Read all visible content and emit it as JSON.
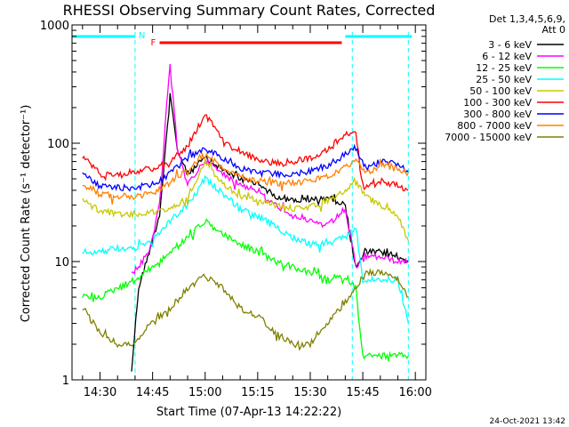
{
  "chart_data": {
    "type": "line",
    "title": "RHESSI Observing Summary Count Rates, Corrected",
    "xlabel": "Start Time (07-Apr-13 14:22:22)",
    "ylabel": "Corrected Count Rate (s⁻¹ detector⁻¹)",
    "y_scale": "log",
    "ylim": [
      1,
      1000
    ],
    "xlim": [
      "14:22",
      "16:03"
    ],
    "x_ticks": [
      "14:30",
      "14:45",
      "15:00",
      "15:15",
      "15:30",
      "15:45",
      "16:00"
    ],
    "y_ticks": [
      "1",
      "10",
      "100",
      "1000"
    ],
    "legend_header": [
      "Det 1,3,4,5,6,9,",
      "Att 0"
    ],
    "footer": "24-Oct-2021 13:42",
    "annotations": {
      "night_label": "N",
      "flare_label": "F",
      "flare_interval": [
        "14:47",
        "15:39"
      ],
      "night_intervals": [
        [
          "14:22",
          "14:40"
        ],
        [
          "15:40",
          "15:59"
        ]
      ],
      "boundary_dashes": [
        "14:40",
        "15:42",
        "15:58"
      ]
    },
    "colors": {
      "night": "#00FFFF",
      "flare": "#FF0000"
    },
    "series": [
      {
        "name": "3 - 6 keV",
        "color": "#000000",
        "x": [
          "14:39",
          "14:41",
          "14:44",
          "14:47",
          "14:50",
          "14:52",
          "14:55",
          "15:00",
          "15:05",
          "15:10",
          "15:15",
          "15:20",
          "15:25",
          "15:30",
          "15:35",
          "15:40",
          "15:43",
          "15:46",
          "15:50",
          "15:55",
          "15:58"
        ],
        "y": [
          1.2,
          6,
          12,
          25,
          250,
          90,
          55,
          75,
          60,
          50,
          45,
          36,
          33,
          33,
          35,
          30,
          9,
          12,
          12,
          11,
          10
        ]
      },
      {
        "name": "6 - 12 keV",
        "color": "#FF00FF",
        "x": [
          "14:39",
          "14:41",
          "14:44",
          "14:47",
          "14:49",
          "14:50",
          "14:52",
          "14:55",
          "15:00",
          "15:05",
          "15:10",
          "15:15",
          "15:20",
          "15:25",
          "15:30",
          "15:35",
          "15:40",
          "15:43",
          "15:46",
          "15:50",
          "15:55",
          "15:58"
        ],
        "y": [
          8,
          9,
          12,
          30,
          200,
          470,
          90,
          45,
          72,
          55,
          45,
          40,
          30,
          25,
          22,
          20,
          28,
          9,
          11,
          11,
          10,
          10
        ]
      },
      {
        "name": "12 - 25 keV",
        "color": "#00FF00",
        "x": [
          "14:25",
          "14:30",
          "14:35",
          "14:40",
          "14:45",
          "14:50",
          "14:55",
          "15:00",
          "15:05",
          "15:10",
          "15:15",
          "15:20",
          "15:25",
          "15:30",
          "15:35",
          "15:40",
          "15:43",
          "15:45",
          "15:50",
          "15:55",
          "15:58"
        ],
        "y": [
          5,
          5,
          6,
          7,
          9,
          12,
          16,
          22,
          17,
          14,
          12,
          10,
          9,
          8,
          7,
          7.5,
          6,
          1.6,
          1.6,
          1.6,
          1.6
        ]
      },
      {
        "name": "25 - 50 keV",
        "color": "#00FFFF",
        "x": [
          "14:25",
          "14:30",
          "14:35",
          "14:40",
          "14:45",
          "14:50",
          "14:55",
          "15:00",
          "15:05",
          "15:10",
          "15:15",
          "15:20",
          "15:25",
          "15:30",
          "15:35",
          "15:40",
          "15:43",
          "15:45",
          "15:50",
          "15:55",
          "15:58"
        ],
        "y": [
          12,
          12,
          13,
          13,
          15,
          22,
          30,
          50,
          38,
          28,
          24,
          20,
          16,
          14,
          14,
          16,
          20,
          7,
          7,
          7,
          3
        ]
      },
      {
        "name": "50 - 100 keV",
        "color": "#C8C800",
        "x": [
          "14:25",
          "14:30",
          "14:35",
          "14:40",
          "14:45",
          "14:50",
          "14:55",
          "15:00",
          "15:05",
          "15:10",
          "15:15",
          "15:20",
          "15:25",
          "15:30",
          "15:35",
          "15:40",
          "15:43",
          "15:46",
          "15:50",
          "15:55",
          "15:58"
        ],
        "y": [
          33,
          27,
          25,
          25,
          26,
          27,
          35,
          70,
          45,
          36,
          33,
          30,
          28,
          29,
          32,
          40,
          50,
          35,
          30,
          25,
          15
        ]
      },
      {
        "name": "100 - 300 keV",
        "color": "#FF0000",
        "x": [
          "14:25",
          "14:30",
          "14:35",
          "14:40",
          "14:45",
          "14:50",
          "14:55",
          "15:00",
          "15:05",
          "15:10",
          "15:15",
          "15:20",
          "15:25",
          "15:30",
          "15:35",
          "15:40",
          "15:43",
          "15:45",
          "15:50",
          "15:55",
          "15:58"
        ],
        "y": [
          80,
          55,
          55,
          58,
          62,
          70,
          95,
          175,
          110,
          85,
          72,
          68,
          70,
          75,
          90,
          120,
          125,
          40,
          48,
          44,
          40
        ]
      },
      {
        "name": "300 - 800 keV",
        "color": "#0000FF",
        "x": [
          "14:25",
          "14:30",
          "14:35",
          "14:40",
          "14:45",
          "14:50",
          "14:55",
          "15:00",
          "15:05",
          "15:10",
          "15:15",
          "15:20",
          "15:25",
          "15:30",
          "15:35",
          "15:40",
          "15:43",
          "15:46",
          "15:50",
          "15:55",
          "15:58"
        ],
        "y": [
          55,
          43,
          42,
          42,
          45,
          55,
          75,
          90,
          75,
          62,
          56,
          55,
          55,
          58,
          65,
          80,
          92,
          60,
          70,
          68,
          57
        ]
      },
      {
        "name": "800 - 7000 keV",
        "color": "#FF8000",
        "x": [
          "14:25",
          "14:30",
          "14:35",
          "14:40",
          "14:45",
          "14:50",
          "14:55",
          "15:00",
          "15:05",
          "15:10",
          "15:15",
          "15:20",
          "15:25",
          "15:30",
          "15:35",
          "15:40",
          "15:43",
          "15:46",
          "15:50",
          "15:55",
          "15:58"
        ],
        "y": [
          45,
          37,
          36,
          35,
          38,
          46,
          60,
          80,
          62,
          52,
          48,
          46,
          46,
          48,
          52,
          62,
          70,
          55,
          65,
          62,
          56
        ]
      },
      {
        "name": "7000 - 15000 keV",
        "color": "#808000",
        "x": [
          "14:25",
          "14:30",
          "14:35",
          "14:40",
          "14:42",
          "14:45",
          "14:50",
          "14:55",
          "15:00",
          "15:05",
          "15:10",
          "15:15",
          "15:20",
          "15:25",
          "15:30",
          "15:35",
          "15:40",
          "15:43",
          "15:46",
          "15:50",
          "15:55",
          "15:58"
        ],
        "y": [
          4,
          2.5,
          2,
          2,
          2.5,
          3,
          4,
          6,
          7.5,
          6,
          4,
          3.5,
          2.5,
          2,
          2,
          3,
          4.5,
          6,
          8,
          8,
          7,
          5
        ]
      }
    ]
  }
}
